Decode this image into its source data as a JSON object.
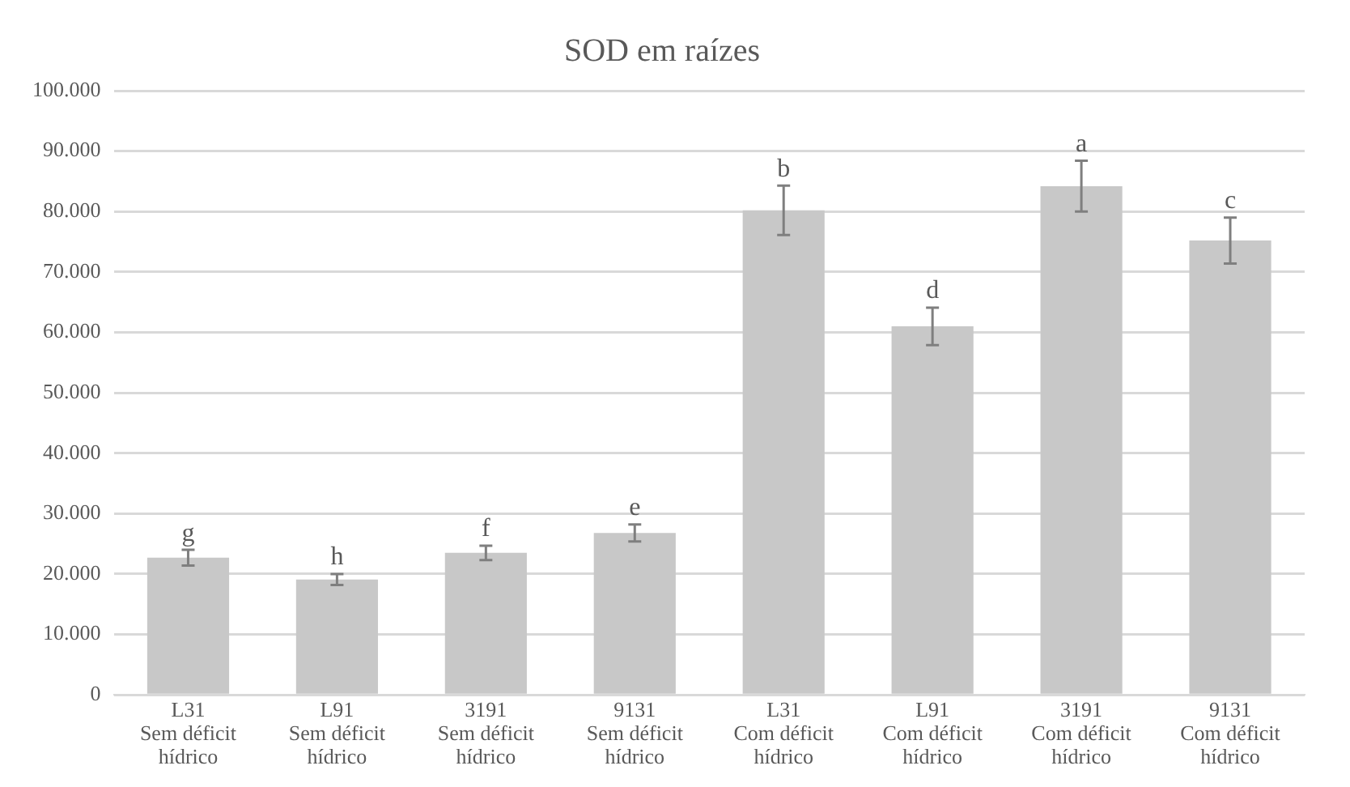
{
  "chart_data": {
    "type": "bar",
    "title": "SOD em raízes",
    "categories": [
      "L31\nSem déficit\nhídrico",
      "L91\nSem déficit\nhídrico",
      "3191\nSem déficit\nhídrico",
      "9131\nSem déficit\nhídrico",
      "L31\nCom déficit\nhídrico",
      "L91\nCom déficit\nhídrico",
      "3191\nCom déficit\nhídrico",
      "9131\nCom déficit\nhídrico"
    ],
    "values": [
      22700,
      19100,
      23500,
      26800,
      80200,
      61000,
      84200,
      75200
    ],
    "errors": [
      1300,
      900,
      1200,
      1400,
      4100,
      3100,
      4200,
      3800
    ],
    "color": "#c8c8c8",
    "ylim": [
      0,
      100000
    ],
    "yticks": [
      {
        "value": 0,
        "label": "0"
      },
      {
        "value": 10000,
        "label": "10.000"
      },
      {
        "value": 20000,
        "label": "20.000"
      },
      {
        "value": 30000,
        "label": "30.000"
      },
      {
        "value": 40000,
        "label": "40.000"
      },
      {
        "value": 50000,
        "label": "50.000"
      },
      {
        "value": 60000,
        "label": "60.000"
      },
      {
        "value": 70000,
        "label": "70.000"
      },
      {
        "value": 80000,
        "label": "80.000"
      },
      {
        "value": 90000,
        "label": "90.000"
      },
      {
        "value": 100000,
        "label": "100.000"
      }
    ],
    "grid": "y",
    "legend": false,
    "annotations": [
      {
        "text": "g",
        "x": "L31\nSem déficit\nhídrico",
        "y": 24000
      },
      {
        "text": "h",
        "x": "L91\nSem déficit\nhídrico",
        "y": 20000
      },
      {
        "text": "f",
        "x": "3191\nSem déficit\nhídrico",
        "y": 24700
      },
      {
        "text": "e",
        "x": "9131\nSem déficit\nhídrico",
        "y": 28200
      },
      {
        "text": "b",
        "x": "L31\nCom déficit\nhídrico",
        "y": 84300
      },
      {
        "text": "d",
        "x": "L91\nCom déficit\nhídrico",
        "y": 64100
      },
      {
        "text": "a",
        "x": "3191\nCom déficit\nhídrico",
        "y": 88400
      },
      {
        "text": "c",
        "x": "9131\nCom déficit\nhídrico",
        "y": 79000
      }
    ]
  }
}
